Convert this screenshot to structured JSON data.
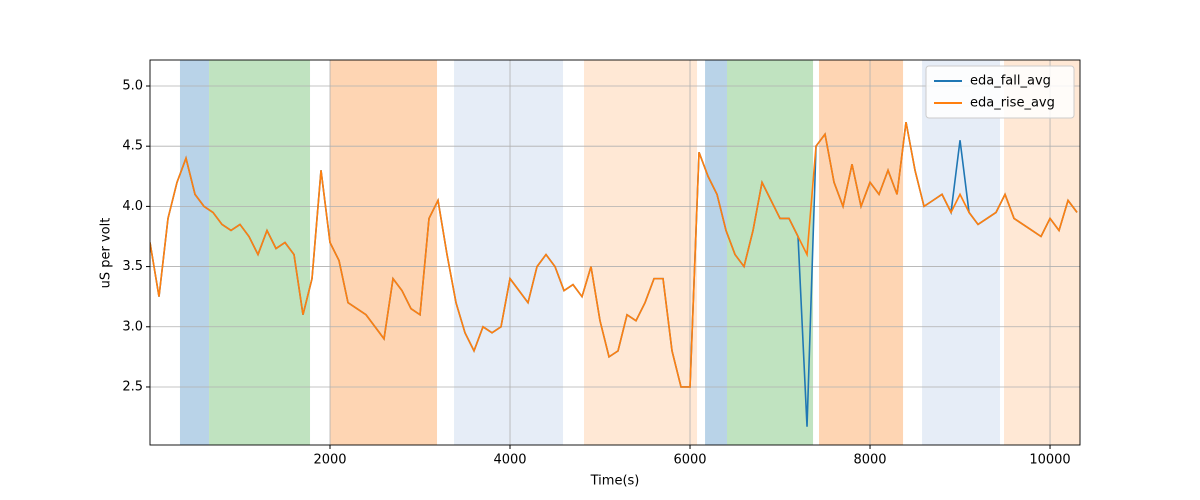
{
  "chart_data": {
    "type": "line",
    "x_label": "Time(s)",
    "y_label": "uS per volt",
    "x": [
      0,
      100,
      200,
      300,
      400,
      500,
      600,
      700,
      800,
      900,
      1000,
      1100,
      1200,
      1300,
      1400,
      1500,
      1600,
      1700,
      1800,
      1900,
      2000,
      2100,
      2200,
      2300,
      2400,
      2500,
      2600,
      2700,
      2800,
      2900,
      3000,
      3100,
      3200,
      3300,
      3400,
      3500,
      3600,
      3700,
      3800,
      3900,
      4000,
      4100,
      4200,
      4300,
      4400,
      4500,
      4600,
      4700,
      4800,
      4900,
      5000,
      5100,
      5200,
      5300,
      5400,
      5500,
      5600,
      5700,
      5800,
      5900,
      6000,
      6100,
      6200,
      6300,
      6400,
      6500,
      6600,
      6700,
      6800,
      6900,
      7000,
      7100,
      7200,
      7300,
      7400,
      7500,
      7600,
      7700,
      7800,
      7900,
      8000,
      8100,
      8200,
      8300,
      8400,
      8500,
      8600,
      8700,
      8800,
      8900,
      9000,
      9100,
      9200,
      9300,
      9400,
      9500,
      9600,
      9700,
      9800,
      9900,
      10000,
      10100,
      10200,
      10300
    ],
    "series": [
      {
        "name": "eda_fall_avg",
        "color": "#1f77b4",
        "values": [
          3.7,
          3.25,
          3.9,
          4.2,
          4.4,
          4.1,
          4.0,
          3.95,
          3.85,
          3.8,
          3.85,
          3.75,
          3.6,
          3.8,
          3.65,
          3.7,
          3.6,
          3.1,
          3.4,
          4.3,
          3.7,
          3.55,
          3.2,
          3.15,
          3.1,
          3.0,
          2.9,
          3.4,
          3.3,
          3.15,
          3.1,
          3.9,
          4.05,
          3.6,
          3.2,
          2.95,
          2.8,
          3.0,
          2.95,
          3.0,
          3.4,
          3.3,
          3.2,
          3.5,
          3.6,
          3.5,
          3.3,
          3.35,
          3.25,
          3.5,
          3.05,
          2.75,
          2.8,
          3.1,
          3.05,
          3.2,
          3.4,
          3.4,
          2.8,
          2.5,
          2.5,
          4.45,
          4.25,
          4.1,
          3.8,
          3.6,
          3.5,
          3.8,
          4.2,
          4.05,
          3.9,
          3.9,
          3.75,
          2.17,
          4.5,
          4.6,
          4.2,
          4.0,
          4.35,
          4.0,
          4.2,
          4.1,
          4.3,
          4.1,
          4.7,
          4.3,
          4.0,
          4.05,
          4.1,
          3.95,
          4.55,
          3.95,
          3.85,
          3.9,
          3.95,
          4.1,
          3.9,
          3.85,
          3.8,
          3.75,
          3.9,
          3.8,
          4.05,
          3.95
        ]
      },
      {
        "name": "eda_rise_avg",
        "color": "#ff7f0e",
        "values": [
          3.7,
          3.25,
          3.9,
          4.2,
          4.4,
          4.1,
          4.0,
          3.95,
          3.85,
          3.8,
          3.85,
          3.75,
          3.6,
          3.8,
          3.65,
          3.7,
          3.6,
          3.1,
          3.4,
          4.3,
          3.7,
          3.55,
          3.2,
          3.15,
          3.1,
          3.0,
          2.9,
          3.4,
          3.3,
          3.15,
          3.1,
          3.9,
          4.05,
          3.6,
          3.2,
          2.95,
          2.8,
          3.0,
          2.95,
          3.0,
          3.4,
          3.3,
          3.2,
          3.5,
          3.6,
          3.5,
          3.3,
          3.35,
          3.25,
          3.5,
          3.05,
          2.75,
          2.8,
          3.1,
          3.05,
          3.2,
          3.4,
          3.4,
          2.8,
          2.5,
          2.5,
          4.45,
          4.25,
          4.1,
          3.8,
          3.6,
          3.5,
          3.8,
          4.2,
          4.05,
          3.9,
          3.9,
          3.75,
          3.6,
          4.5,
          4.6,
          4.2,
          4.0,
          4.35,
          4.0,
          4.2,
          4.1,
          4.3,
          4.1,
          4.7,
          4.3,
          4.0,
          4.05,
          4.1,
          3.95,
          4.1,
          3.95,
          3.85,
          3.9,
          3.95,
          4.1,
          3.9,
          3.85,
          3.8,
          3.75,
          3.9,
          3.8,
          4.05,
          3.95
        ]
      }
    ],
    "spans": [
      {
        "x": [
          333,
          656
        ],
        "color": "#b9d3e8"
      },
      {
        "x": [
          656,
          1778
        ],
        "color": "#c0e3c0"
      },
      {
        "x": [
          2000,
          3189
        ],
        "color": "#fed5b3"
      },
      {
        "x": [
          3378,
          4589
        ],
        "color": "#e6edf7"
      },
      {
        "x": [
          4822,
          6078
        ],
        "color": "#ffe8d5"
      },
      {
        "x": [
          6167,
          6411
        ],
        "color": "#b9d3e8"
      },
      {
        "x": [
          6411,
          7367
        ],
        "color": "#c0e3c0"
      },
      {
        "x": [
          7433,
          8367
        ],
        "color": "#fed5b3"
      },
      {
        "x": [
          8578,
          9444
        ],
        "color": "#e6edf7"
      },
      {
        "x": [
          9489,
          10333
        ],
        "color": "#ffe8d5"
      }
    ],
    "xlim": [
      0,
      10333
    ],
    "ylim": [
      2.018,
      5.216
    ],
    "xticks": [
      2000,
      4000,
      6000,
      8000,
      10000
    ],
    "yticks": [
      2.5,
      {
        "value": 3,
        "label": "3.0"
      },
      3.5,
      {
        "value": 4,
        "label": "4.0"
      },
      4.5,
      {
        "value": 5,
        "label": "5.0"
      }
    ],
    "grid": true,
    "legend": "upper right"
  }
}
